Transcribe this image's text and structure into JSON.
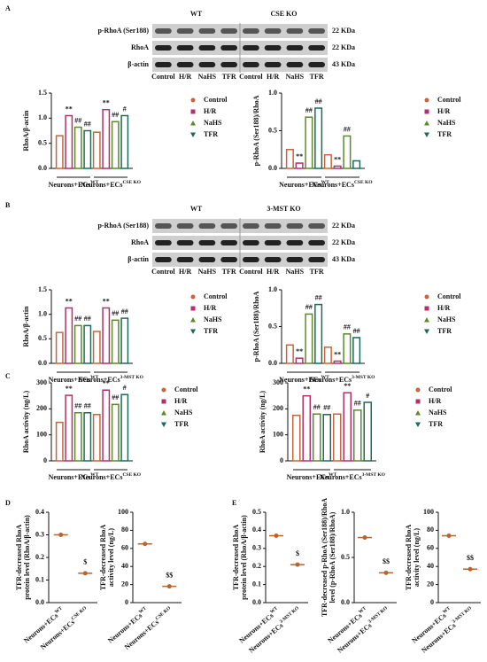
{
  "panels": [
    "A",
    "B",
    "C",
    "D",
    "E"
  ],
  "blots": [
    {
      "groups": [
        "WT",
        "CSE KO"
      ],
      "rows": [
        "p-RhoA (Ser188)",
        "RhoA",
        "β-actin"
      ],
      "sizes": [
        "22 KDa",
        "22 KDa",
        "43 KDa"
      ],
      "lanes": [
        "Control",
        "H/R",
        "NaHS",
        "TFR",
        "Control",
        "H/R",
        "NaHS",
        "TFR"
      ]
    },
    {
      "groups": [
        "WT",
        "3-MST KO"
      ],
      "rows": [
        "p-RhoA (Ser188)",
        "RhoA",
        "β-actin"
      ],
      "sizes": [
        "22 KDa",
        "22 KDa",
        "43 KDa"
      ],
      "lanes": [
        "Control",
        "H/R",
        "NaHS",
        "TFR",
        "Control",
        "H/R",
        "NaHS",
        "TFR"
      ]
    }
  ],
  "chart_data": [
    {
      "type": "bar",
      "ylabel": [
        "RhoA/β-actin"
      ],
      "categories": [
        "Neurons+ECs",
        "Neurons+ECs"
      ],
      "category_superscripts": [
        "WT",
        "CSE KO"
      ],
      "ylim": [
        0,
        1.5
      ],
      "yticks": [
        {
          "value": 0,
          "label": "0.0"
        },
        0.5,
        {
          "value": 1,
          "label": "1.0"
        },
        1.5
      ],
      "series": [
        {
          "name": "Control",
          "color": "#c8643c",
          "values": [
            0.65,
            0.72
          ],
          "annotations": [
            null,
            null
          ]
        },
        {
          "name": "H/R",
          "color": "#b4306a",
          "values": [
            1.05,
            1.17
          ],
          "annotations": [
            "**",
            "**"
          ]
        },
        {
          "name": "NaHS",
          "color": "#5a8a2a",
          "values": [
            0.82,
            0.93
          ],
          "annotations": [
            "##",
            "##"
          ]
        },
        {
          "name": "TFR",
          "color": "#1a6a5a",
          "values": [
            0.75,
            1.05
          ],
          "annotations": [
            "##",
            "#"
          ]
        }
      ]
    },
    {
      "type": "bar",
      "ylabel": [
        "p-RhoA (Ser188)/RhoA"
      ],
      "categories": [
        "Neurons+ECs",
        "Neurons+ECs"
      ],
      "category_superscripts": [
        "WT",
        "CSE KO"
      ],
      "ylim": [
        0,
        1
      ],
      "yticks": [
        {
          "value": 0,
          "label": "0.0"
        },
        0.5,
        {
          "value": 1,
          "label": "1.0"
        }
      ],
      "series": [
        {
          "name": "Control",
          "color": "#c8643c",
          "values": [
            0.25,
            0.18
          ],
          "annotations": [
            null,
            null
          ]
        },
        {
          "name": "H/R",
          "color": "#b4306a",
          "values": [
            0.07,
            0.03
          ],
          "annotations": [
            "**",
            "**"
          ]
        },
        {
          "name": "NaHS",
          "color": "#5a8a2a",
          "values": [
            0.68,
            0.43
          ],
          "annotations": [
            "##",
            "##"
          ]
        },
        {
          "name": "TFR",
          "color": "#1a6a5a",
          "values": [
            0.8,
            0.1
          ],
          "annotations": [
            "##",
            null
          ]
        }
      ]
    },
    {
      "type": "bar",
      "ylabel": [
        "RhoA/β-actin"
      ],
      "categories": [
        "Neurons+ECs",
        "Neurons+ECs"
      ],
      "category_superscripts": [
        "WT",
        "3-MST KO"
      ],
      "ylim": [
        0,
        1.5
      ],
      "yticks": [
        {
          "value": 0,
          "label": "0.0"
        },
        0.5,
        {
          "value": 1,
          "label": "1.0"
        },
        1.5
      ],
      "series": [
        {
          "name": "Control",
          "color": "#c8643c",
          "values": [
            0.63,
            0.65
          ],
          "annotations": [
            null,
            null
          ]
        },
        {
          "name": "H/R",
          "color": "#b4306a",
          "values": [
            1.13,
            1.13
          ],
          "annotations": [
            "**",
            "**"
          ]
        },
        {
          "name": "NaHS",
          "color": "#5a8a2a",
          "values": [
            0.77,
            0.88
          ],
          "annotations": [
            "##",
            "##"
          ]
        },
        {
          "name": "TFR",
          "color": "#1a6a5a",
          "values": [
            0.77,
            0.92
          ],
          "annotations": [
            "##",
            "##"
          ]
        }
      ]
    },
    {
      "type": "bar",
      "ylabel": [
        "p-RhoA (Ser188)/RhoA"
      ],
      "categories": [
        "Neurons+ECs",
        "Neurons+ECs"
      ],
      "category_superscripts": [
        "WT",
        "3-MST KO"
      ],
      "ylim": [
        0,
        1
      ],
      "yticks": [
        {
          "value": 0,
          "label": "0.0"
        },
        0.5,
        {
          "value": 1,
          "label": "1.0"
        }
      ],
      "series": [
        {
          "name": "Control",
          "color": "#c8643c",
          "values": [
            0.25,
            0.22
          ],
          "annotations": [
            null,
            null
          ]
        },
        {
          "name": "H/R",
          "color": "#b4306a",
          "values": [
            0.07,
            0.03
          ],
          "annotations": [
            "**",
            "**"
          ]
        },
        {
          "name": "NaHS",
          "color": "#5a8a2a",
          "values": [
            0.67,
            0.4
          ],
          "annotations": [
            "##",
            "##"
          ]
        },
        {
          "name": "TFR",
          "color": "#1a6a5a",
          "values": [
            0.8,
            0.35
          ],
          "annotations": [
            "##",
            "##"
          ]
        }
      ]
    },
    {
      "type": "bar",
      "ylabel": [
        "RhoA activity (ng/L)"
      ],
      "categories": [
        "Neurons+ECs",
        "Neurons+ECs"
      ],
      "category_superscripts": [
        "WT",
        "CSE KO"
      ],
      "ylim": [
        0,
        300
      ],
      "yticks": [
        0,
        100,
        200,
        300
      ],
      "series": [
        {
          "name": "Control",
          "color": "#c8643c",
          "values": [
            148,
            178
          ],
          "annotations": [
            null,
            null
          ]
        },
        {
          "name": "H/R",
          "color": "#b4306a",
          "values": [
            252,
            272
          ],
          "annotations": [
            "**",
            "**"
          ]
        },
        {
          "name": "NaHS",
          "color": "#5a8a2a",
          "values": [
            185,
            217
          ],
          "annotations": [
            "##",
            "##"
          ]
        },
        {
          "name": "TFR",
          "color": "#1a6a5a",
          "values": [
            185,
            255
          ],
          "annotations": [
            "##",
            "#"
          ]
        }
      ]
    },
    {
      "type": "bar",
      "ylabel": [
        "RhoA activity (ng/L)"
      ],
      "categories": [
        "Neurons+ECs",
        "Neurons+ECs"
      ],
      "category_superscripts": [
        "WT",
        "3-MST KO"
      ],
      "ylim": [
        0,
        300
      ],
      "yticks": [
        0,
        100,
        200,
        300
      ],
      "series": [
        {
          "name": "Control",
          "color": "#c8643c",
          "values": [
            175,
            180
          ],
          "annotations": [
            null,
            null
          ]
        },
        {
          "name": "H/R",
          "color": "#b4306a",
          "values": [
            250,
            262
          ],
          "annotations": [
            "**",
            "**"
          ]
        },
        {
          "name": "NaHS",
          "color": "#5a8a2a",
          "values": [
            180,
            195
          ],
          "annotations": [
            "##",
            "##"
          ]
        },
        {
          "name": "TFR",
          "color": "#1a6a5a",
          "values": [
            178,
            225
          ],
          "annotations": [
            "##",
            "#"
          ]
        }
      ]
    },
    {
      "type": "dot",
      "ylabel": [
        "TFR-decreased RhoA",
        "protein level (RhoA/β-actin)"
      ],
      "categories": [
        "Neurons+ECs",
        "Neurons+ECs"
      ],
      "category_superscripts": [
        "WT",
        "CSE KO"
      ],
      "ylim": [
        0,
        0.4
      ],
      "yticks": [
        {
          "value": 0,
          "label": "0.0"
        },
        0.1,
        0.2,
        0.3,
        0.4
      ],
      "color": "#b8642c",
      "values": [
        0.3,
        0.13
      ],
      "annotations": [
        null,
        "$"
      ]
    },
    {
      "type": "dot",
      "ylabel": [
        "TFR-decreased RhoA",
        "activity level (ng/L)"
      ],
      "categories": [
        "Neurons+ECs",
        "Neurons+ECs"
      ],
      "category_superscripts": [
        "WT",
        "CSE KO"
      ],
      "ylim": [
        0,
        100
      ],
      "yticks": [
        0,
        20,
        40,
        60,
        80,
        100
      ],
      "color": "#b8642c",
      "values": [
        65,
        18
      ],
      "annotations": [
        null,
        "$$"
      ]
    },
    {
      "type": "dot",
      "ylabel": [
        "TFR-decreased RhoA",
        "protein level (RhoA/β-actin)"
      ],
      "categories": [
        "Neurons+ECs",
        "Neurons+ECs"
      ],
      "category_superscripts": [
        "WT",
        "3-MST KO"
      ],
      "ylim": [
        0,
        0.5
      ],
      "yticks": [
        {
          "value": 0,
          "label": "0.0"
        },
        0.1,
        0.2,
        0.3,
        0.4,
        0.5
      ],
      "color": "#b8642c",
      "values": [
        0.37,
        0.21
      ],
      "annotations": [
        null,
        "$"
      ]
    },
    {
      "type": "dot",
      "ylabel": [
        "TFR-decreased p-RhoA (Ser188)/RhoA",
        "level (p-RhoA (Ser188)/RhoA)"
      ],
      "categories": [
        "Neurons+ECs",
        "Neurons+ECs"
      ],
      "category_superscripts": [
        "WT",
        "3-MST KO"
      ],
      "ylim": [
        0,
        1
      ],
      "yticks": [
        {
          "value": 0,
          "label": "0.0"
        },
        0.5,
        {
          "value": 1,
          "label": "1.0"
        }
      ],
      "color": "#b8642c",
      "values": [
        0.72,
        0.33
      ],
      "annotations": [
        null,
        "$$"
      ]
    },
    {
      "type": "dot",
      "ylabel": [
        "TFR-decreased RhoA",
        "activity level (ng/L)"
      ],
      "categories": [
        "Neurons+ECs",
        "Neurons+ECs"
      ],
      "category_superscripts": [
        "WT",
        "3-MST KO"
      ],
      "ylim": [
        0,
        100
      ],
      "yticks": [
        0,
        20,
        40,
        60,
        80,
        100
      ],
      "color": "#b8642c",
      "values": [
        74,
        37
      ],
      "annotations": [
        null,
        "$$"
      ]
    }
  ]
}
